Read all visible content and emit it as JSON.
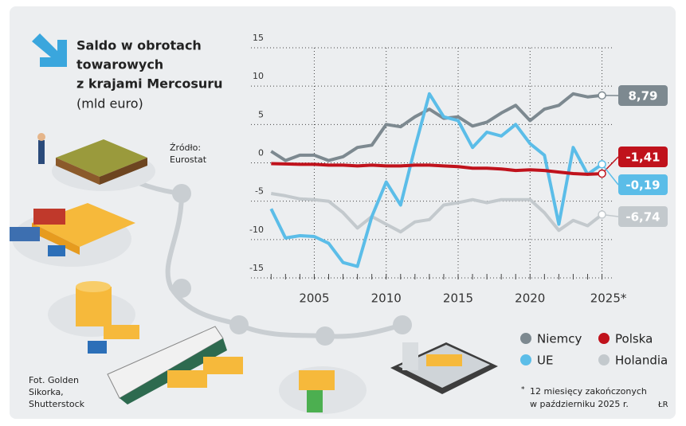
{
  "chart_data": {
    "type": "line",
    "title": [
      "Saldo w obrotach",
      "towarowych",
      "z krajami Mercosuru"
    ],
    "subtitle": "(mld euro)",
    "source": [
      "Źródło:",
      "Eurostat"
    ],
    "photo_credit": [
      "Fot. Golden",
      "Sikorka,",
      "Shutterstock"
    ],
    "footnote_marker": "*",
    "footnote": [
      "12 miesięcy zakończonych",
      "w październiku 2025 r."
    ],
    "author": "ŁR",
    "x": [
      2002,
      2003,
      2004,
      2005,
      2006,
      2007,
      2008,
      2009,
      2010,
      2011,
      2012,
      2013,
      2014,
      2015,
      2016,
      2017,
      2018,
      2019,
      2020,
      2021,
      2022,
      2023,
      2024,
      2025
    ],
    "xlim": [
      2000.6,
      2025.8
    ],
    "xticks": [
      2005,
      2010,
      2015,
      2020,
      {
        "value": 2025,
        "label": "2025*"
      }
    ],
    "ylim": [
      -15,
      15
    ],
    "yticks": [
      15,
      10,
      5,
      0,
      -5,
      -10,
      -15
    ],
    "grid": true,
    "series": [
      {
        "name": "Niemcy",
        "color": "#7d8990",
        "values": [
          1.5,
          0.3,
          1.0,
          1.0,
          0.3,
          0.8,
          2.0,
          2.3,
          5.0,
          4.7,
          6.0,
          7.0,
          5.8,
          6.0,
          4.8,
          5.3,
          6.5,
          7.5,
          5.5,
          7.0,
          7.5,
          9.0,
          8.6,
          8.79
        ],
        "value_labels": [
          null,
          null,
          null,
          null,
          null,
          null,
          null,
          null,
          null,
          null,
          null,
          null,
          null,
          null,
          null,
          null,
          null,
          null,
          null,
          null,
          null,
          null,
          null,
          "8,79"
        ]
      },
      {
        "name": "Polska",
        "color": "#c0121c",
        "values": [
          -0.1,
          -0.15,
          -0.2,
          -0.2,
          -0.3,
          -0.3,
          -0.4,
          -0.3,
          -0.4,
          -0.4,
          -0.3,
          -0.3,
          -0.4,
          -0.5,
          -0.7,
          -0.7,
          -0.8,
          -1.0,
          -0.9,
          -1.0,
          -1.2,
          -1.4,
          -1.5,
          -1.41
        ],
        "value_labels": [
          null,
          null,
          null,
          null,
          null,
          null,
          null,
          null,
          null,
          null,
          null,
          null,
          null,
          null,
          null,
          null,
          null,
          null,
          null,
          null,
          null,
          null,
          null,
          "-1,41"
        ]
      },
      {
        "name": "UE",
        "color": "#5bbde8",
        "values": [
          -6,
          -9.8,
          -9.5,
          -9.6,
          -10.5,
          -13,
          -13.5,
          -7,
          -2.5,
          -5.5,
          2,
          9,
          6,
          5.5,
          2,
          4,
          3.5,
          5,
          2.5,
          1,
          -8,
          2,
          -1.5,
          -0.19
        ],
        "value_labels": [
          null,
          null,
          null,
          null,
          null,
          null,
          null,
          null,
          null,
          null,
          null,
          null,
          null,
          null,
          null,
          null,
          null,
          null,
          null,
          null,
          null,
          null,
          null,
          "-0,19"
        ]
      },
      {
        "name": "Holandia",
        "color": "#c3c9cd",
        "values": [
          -4,
          -4.3,
          -4.7,
          -4.8,
          -5,
          -6.5,
          -8.5,
          -7,
          -8,
          -9,
          -7.7,
          -7.4,
          -5.5,
          -5.2,
          -4.8,
          -5.2,
          -4.8,
          -4.8,
          -4.8,
          -6.5,
          -8.8,
          -7.5,
          -8.2,
          -6.74
        ],
        "value_labels": [
          null,
          null,
          null,
          null,
          null,
          null,
          null,
          null,
          null,
          null,
          null,
          null,
          null,
          null,
          null,
          null,
          null,
          null,
          null,
          null,
          null,
          null,
          null,
          "-6,74"
        ]
      }
    ]
  }
}
